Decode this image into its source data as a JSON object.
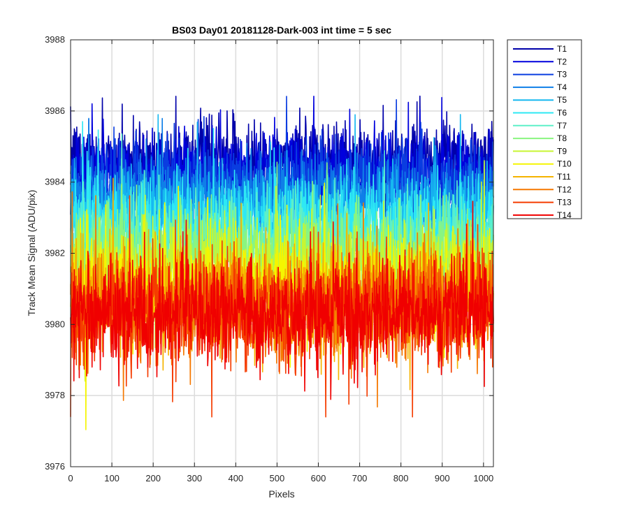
{
  "chart_data": {
    "type": "line",
    "title": "BS03 Day01 20181128-Dark-003 int time = 5 sec",
    "xlabel": "Pixels",
    "ylabel": "Track Mean Signal (ADU/pix)",
    "xlim": [
      0,
      1024
    ],
    "ylim": [
      3976,
      3988
    ],
    "xticks": [
      0,
      100,
      200,
      300,
      400,
      500,
      600,
      700,
      800,
      900,
      1000
    ],
    "yticks": [
      3976,
      3978,
      3980,
      3982,
      3984,
      3986,
      3988
    ],
    "grid": true,
    "legend_position": "outside-top-right",
    "series": [
      {
        "name": "T1",
        "color": "#0000aa",
        "mean": 3984.6,
        "noise": 0.55,
        "min": 3981.8,
        "max": 3987.2
      },
      {
        "name": "T2",
        "color": "#0000dd",
        "mean": 3984.3,
        "noise": 0.55,
        "min": 3981.5,
        "max": 3987.0
      },
      {
        "name": "T3",
        "color": "#0a3de0",
        "mean": 3984.0,
        "noise": 0.55,
        "min": 3981.2,
        "max": 3986.5
      },
      {
        "name": "T4",
        "color": "#0f7fe8",
        "mean": 3983.6,
        "noise": 0.55,
        "min": 3980.8,
        "max": 3986.2
      },
      {
        "name": "T5",
        "color": "#17b8f0",
        "mean": 3983.2,
        "noise": 0.55,
        "min": 3980.4,
        "max": 3985.9
      },
      {
        "name": "T6",
        "color": "#2ee8f4",
        "mean": 3982.8,
        "noise": 0.6,
        "min": 3980.0,
        "max": 3985.7
      },
      {
        "name": "T7",
        "color": "#5ef0c8",
        "mean": 3982.4,
        "noise": 0.6,
        "min": 3979.6,
        "max": 3985.6
      },
      {
        "name": "T8",
        "color": "#8af57f",
        "mean": 3982.0,
        "noise": 0.6,
        "min": 3979.0,
        "max": 3985.5
      },
      {
        "name": "T9",
        "color": "#c8f532",
        "mean": 3981.6,
        "noise": 0.65,
        "min": 3978.4,
        "max": 3985.4
      },
      {
        "name": "T10",
        "color": "#f5f500",
        "mean": 3981.1,
        "noise": 0.7,
        "min": 3976.8,
        "max": 3985.0
      },
      {
        "name": "T11",
        "color": "#f5b400",
        "mean": 3980.8,
        "noise": 0.7,
        "min": 3977.2,
        "max": 3984.7
      },
      {
        "name": "T12",
        "color": "#f57800",
        "mean": 3980.5,
        "noise": 0.7,
        "min": 3977.2,
        "max": 3984.6
      },
      {
        "name": "T13",
        "color": "#f53c00",
        "mean": 3980.4,
        "noise": 0.7,
        "min": 3977.4,
        "max": 3984.4
      },
      {
        "name": "T14",
        "color": "#f00000",
        "mean": 3980.3,
        "noise": 0.75,
        "min": 3976.5,
        "max": 3984.2
      }
    ]
  }
}
